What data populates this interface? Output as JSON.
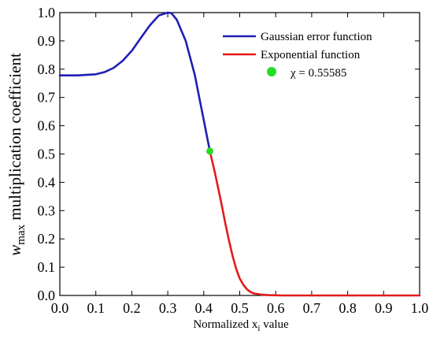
{
  "chart_data": {
    "type": "line",
    "xlabel": "Normalized x",
    "xlabel_sub": "i",
    "xlabel_suffix": " value",
    "ylabel_var": "w",
    "ylabel_sub": "max",
    "ylabel_rest": " multiplication coefficient",
    "xlim": [
      0.0,
      1.0
    ],
    "ylim": [
      0.0,
      1.0
    ],
    "x_ticks": [
      "0.0",
      "0.1",
      "0.2",
      "0.3",
      "0.4",
      "0.5",
      "0.6",
      "0.7",
      "0.8",
      "0.9",
      "1.0"
    ],
    "y_ticks": [
      "0.0",
      "0.1",
      "0.2",
      "0.3",
      "0.4",
      "0.5",
      "0.6",
      "0.7",
      "0.8",
      "0.9",
      "1.0"
    ],
    "grid": false,
    "legend_position": "top-right",
    "series": [
      {
        "name": "Gaussian error function",
        "color": "#1f1fb4",
        "x": [
          0.0,
          0.05,
          0.1,
          0.125,
          0.15,
          0.175,
          0.2,
          0.225,
          0.25,
          0.275,
          0.3,
          0.31,
          0.325,
          0.35,
          0.375,
          0.4,
          0.417
        ],
        "y": [
          0.778,
          0.778,
          0.782,
          0.79,
          0.805,
          0.83,
          0.865,
          0.91,
          0.955,
          0.99,
          1.0,
          0.998,
          0.975,
          0.9,
          0.78,
          0.62,
          0.51
        ]
      },
      {
        "name": "Exponential function",
        "color": "#e31a1c",
        "x": [
          0.417,
          0.43,
          0.44,
          0.45,
          0.46,
          0.47,
          0.48,
          0.49,
          0.5,
          0.51,
          0.52,
          0.53,
          0.54,
          0.56,
          0.58,
          0.62,
          0.7,
          0.8,
          0.9,
          1.0
        ],
        "y": [
          0.51,
          0.44,
          0.38,
          0.32,
          0.255,
          0.195,
          0.14,
          0.095,
          0.06,
          0.038,
          0.022,
          0.012,
          0.007,
          0.003,
          0.001,
          0.0,
          0.0,
          0.0,
          0.0,
          0.0
        ]
      }
    ],
    "marker": {
      "label": "χ = 0.55585",
      "x": 0.417,
      "y": 0.51,
      "color": "#22dd22"
    }
  }
}
